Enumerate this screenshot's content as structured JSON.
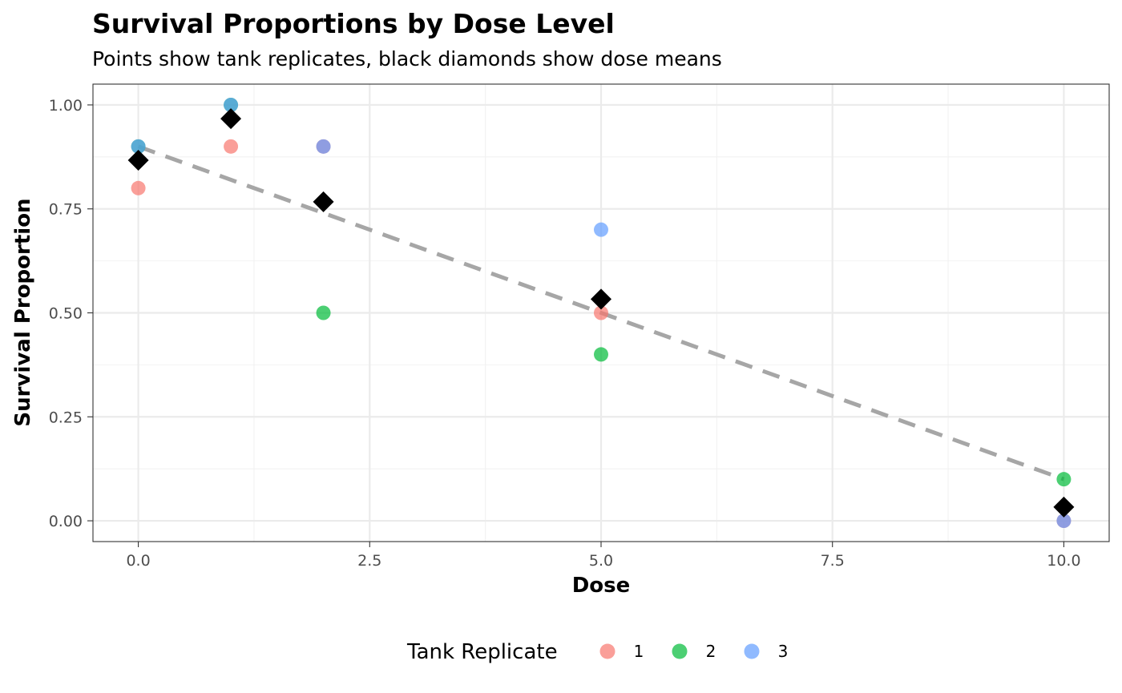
{
  "chart_data": {
    "type": "scatter",
    "title": "Survival Proportions by Dose Level",
    "subtitle": "Points show tank replicates, black diamonds show dose means",
    "xlabel": "Dose",
    "ylabel": "Survival Proportion",
    "xlim": [
      -0.49,
      10.49
    ],
    "ylim": [
      -0.05,
      1.05
    ],
    "x_ticks": [
      0,
      2.5,
      5,
      7.5,
      10
    ],
    "x_tick_labels": [
      "0.0",
      "2.5",
      "5.0",
      "7.5",
      "10.0"
    ],
    "y_ticks": [
      0,
      0.25,
      0.5,
      0.75,
      1
    ],
    "y_tick_labels": [
      "0.00",
      "0.25",
      "0.50",
      "0.75",
      "1.00"
    ],
    "grid": true,
    "legend": {
      "title": "Tank Replicate",
      "position": "bottom",
      "entries": [
        {
          "label": "1",
          "color": "#F8766D"
        },
        {
          "label": "2",
          "color": "#00BA38"
        },
        {
          "label": "3",
          "color": "#619CFF"
        }
      ]
    },
    "series": [
      {
        "name": "1",
        "color": "#F8766D",
        "x": [
          0,
          1,
          2,
          5,
          10
        ],
        "y": [
          0.8,
          0.9,
          0.9,
          0.5,
          0.0
        ]
      },
      {
        "name": "2",
        "color": "#00BA38",
        "x": [
          0,
          1,
          2,
          5,
          10
        ],
        "y": [
          0.9,
          1.0,
          0.5,
          0.4,
          0.1
        ]
      },
      {
        "name": "3",
        "color": "#619CFF",
        "x": [
          0,
          1,
          2,
          5,
          10
        ],
        "y": [
          0.9,
          1.0,
          0.9,
          0.7,
          0.0
        ]
      }
    ],
    "means": {
      "color": "#000000",
      "x": [
        0,
        1,
        2,
        5,
        10
      ],
      "y": [
        0.867,
        0.967,
        0.767,
        0.533,
        0.033
      ]
    },
    "trend_line": {
      "style": "dashed",
      "color": "#A6A6A6",
      "x": [
        0,
        10
      ],
      "y": [
        0.9,
        0.1
      ]
    }
  }
}
